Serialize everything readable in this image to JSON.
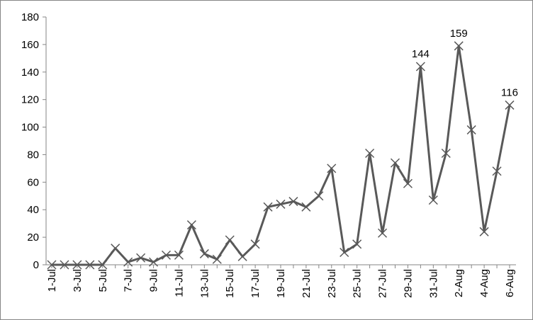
{
  "chart_data": {
    "type": "line",
    "categories": [
      "1-Jul",
      null,
      "3-Jul",
      null,
      "5-Jul",
      null,
      "7-Jul",
      null,
      "9-Jul",
      null,
      "11-Jul",
      null,
      "13-Jul",
      null,
      "15-Jul",
      null,
      "17-Jul",
      null,
      "19-Jul",
      null,
      "21-Jul",
      null,
      "23-Jul",
      null,
      "25-Jul",
      null,
      "27-Jul",
      null,
      "29-Jul",
      null,
      "31-Jul",
      null,
      "2-Aug",
      null,
      "4-Aug",
      null,
      "6-Aug"
    ],
    "series": [
      {
        "color": "#595959",
        "values": [
          0,
          0,
          0,
          0,
          0,
          12,
          2,
          5,
          2,
          7,
          7,
          29,
          8,
          4,
          18,
          6,
          15,
          42,
          44,
          46,
          42,
          50,
          70,
          9,
          15,
          81,
          23,
          74,
          59,
          144,
          47,
          81,
          159,
          98,
          24,
          68,
          116
        ],
        "value_labels": [
          null,
          null,
          null,
          null,
          null,
          null,
          null,
          null,
          null,
          null,
          null,
          null,
          null,
          null,
          null,
          null,
          null,
          null,
          null,
          null,
          null,
          null,
          null,
          null,
          null,
          null,
          null,
          null,
          null,
          "144",
          null,
          null,
          "159",
          null,
          null,
          null,
          "116"
        ]
      }
    ],
    "ylim": [
      0,
      180
    ],
    "yticks": [
      0,
      20,
      40,
      60,
      80,
      100,
      120,
      140,
      160,
      180
    ]
  }
}
